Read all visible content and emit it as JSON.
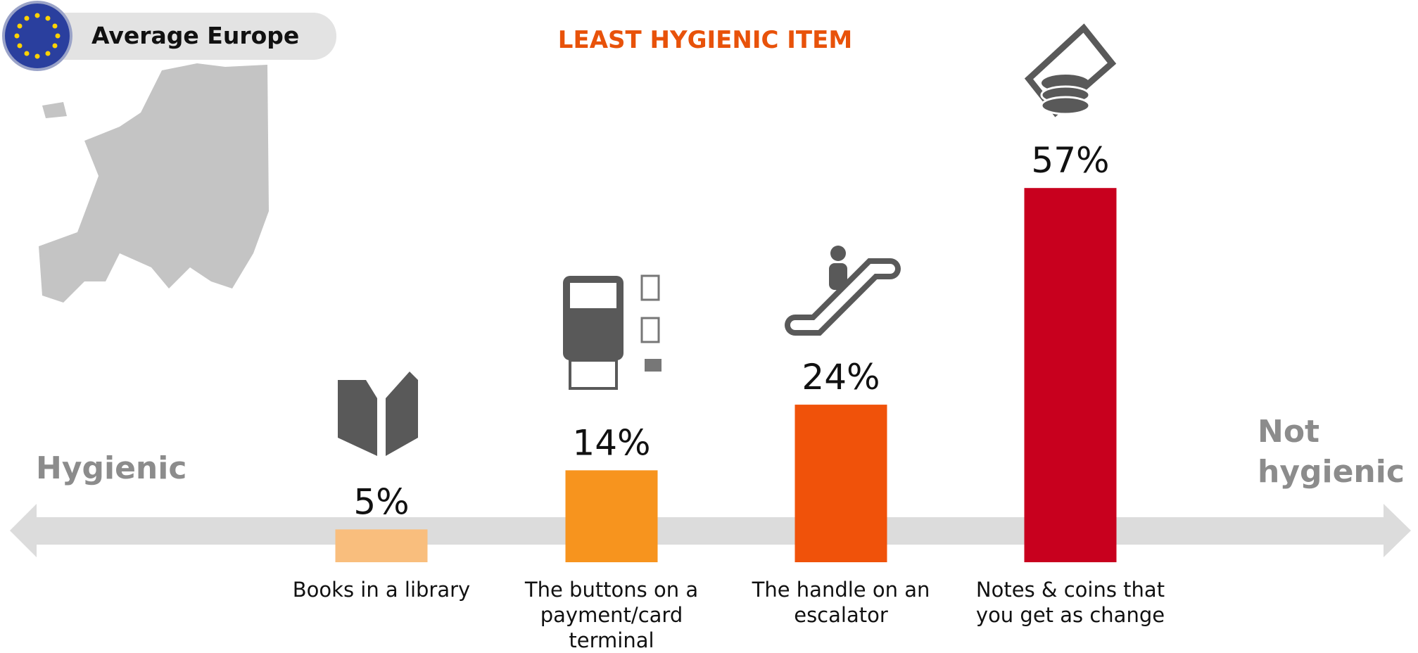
{
  "chart_data": {
    "type": "bar",
    "title": "LEAST HYGIENIC ITEM",
    "badge": "Average Europe",
    "left_label": "Hygienic",
    "right_label": "Not hygienic",
    "categories": [
      "Books in a library",
      "The buttons on a payment/card terminal",
      "The handle on an escalator",
      "Notes & coins that you get as change"
    ],
    "values": [
      5,
      14,
      24,
      57
    ],
    "value_labels": [
      "5%",
      "14%",
      "24%",
      "57%"
    ],
    "colors": [
      "#f9be7d",
      "#f7941e",
      "#f0520a",
      "#c8001e"
    ]
  }
}
